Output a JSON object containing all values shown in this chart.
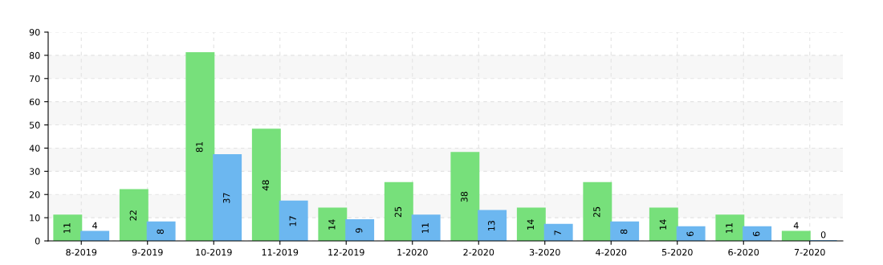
{
  "chart_data": {
    "type": "bar",
    "categories": [
      "8-2019",
      "9-2019",
      "10-2019",
      "11-2019",
      "12-2019",
      "1-2020",
      "2-2020",
      "3-2020",
      "4-2020",
      "5-2020",
      "6-2020",
      "7-2020"
    ],
    "series": [
      {
        "color": "#77e07b",
        "values": [
          11,
          22,
          81,
          48,
          14,
          25,
          38,
          14,
          25,
          14,
          11,
          4
        ]
      },
      {
        "color": "#6cb7f0",
        "values": [
          4,
          8,
          37,
          17,
          9,
          11,
          13,
          7,
          8,
          6,
          6,
          0
        ]
      }
    ],
    "ylim": [
      0,
      90
    ],
    "yticks": [
      0,
      10,
      20,
      30,
      40,
      50,
      60,
      70,
      80,
      90
    ],
    "bands": [
      {
        "axis": "y",
        "from": 10,
        "to": 20,
        "color": "#f7f7f7"
      },
      {
        "axis": "y",
        "from": 30,
        "to": 40,
        "color": "#f7f7f7"
      },
      {
        "axis": "y",
        "from": 50,
        "to": 60,
        "color": "#f7f7f7"
      },
      {
        "axis": "y",
        "from": 70,
        "to": 80,
        "color": "#f7f7f7"
      }
    ],
    "grid": true,
    "data_labels": true
  }
}
